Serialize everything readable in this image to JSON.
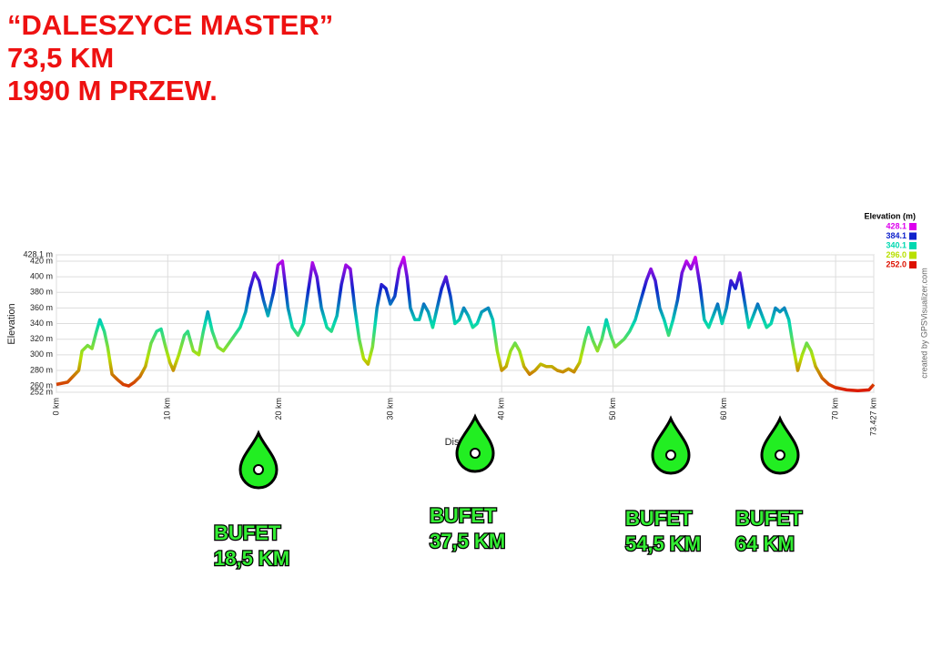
{
  "header": [
    "“DALESZYCE MASTER”",
    "73,5 KM",
    "1990 M PRZEW."
  ],
  "chart_data": {
    "type": "line",
    "y_label": "Elevation",
    "x_label": "Distance",
    "credit": "created by GPSVisualizer.com",
    "xlim": [
      0,
      73.427
    ],
    "ylim": [
      252,
      428.1
    ],
    "xticks": [
      {
        "value": 0,
        "label": "0 km"
      },
      {
        "value": 10,
        "label": "10 km"
      },
      {
        "value": 20,
        "label": "20 km"
      },
      {
        "value": 30,
        "label": "30 km"
      },
      {
        "value": 40,
        "label": "40 km"
      },
      {
        "value": 50,
        "label": "50 km"
      },
      {
        "value": 60,
        "label": "60 km"
      },
      {
        "value": 70,
        "label": "70 km"
      },
      {
        "value": 73.427,
        "label": "73.427 km"
      }
    ],
    "yticks": [
      {
        "value": 252,
        "label": "252 m"
      },
      {
        "value": 260,
        "label": "260 m"
      },
      {
        "value": 280,
        "label": "280 m"
      },
      {
        "value": 300,
        "label": "300 m"
      },
      {
        "value": 320,
        "label": "320 m"
      },
      {
        "value": 340,
        "label": "340 m"
      },
      {
        "value": 360,
        "label": "360 m"
      },
      {
        "value": 380,
        "label": "380 m"
      },
      {
        "value": 400,
        "label": "400 m"
      },
      {
        "value": 420,
        "label": "420 m"
      },
      {
        "value": 428.1,
        "label": "428.1 m"
      }
    ],
    "grid": true,
    "legend": {
      "title": "Elevation (m)",
      "stops": [
        {
          "value": 428.1,
          "label": "428.1",
          "color": "#dd00ee"
        },
        {
          "value": 384.1,
          "label": "384.1",
          "color": "#1022cc"
        },
        {
          "value": 340.1,
          "label": "340.1",
          "color": "#00d8b0"
        },
        {
          "value": 296,
          "label": "296.0",
          "color": "#b8e000"
        },
        {
          "value": 252,
          "label": "252.0",
          "color": "#dd1100"
        }
      ]
    },
    "x": [
      0,
      1,
      2,
      2.3,
      2.8,
      3.2,
      3.6,
      3.9,
      4.3,
      4.6,
      5,
      5.5,
      6,
      6.5,
      7,
      7.5,
      8,
      8.5,
      9,
      9.4,
      9.8,
      10.2,
      10.5,
      11,
      11.5,
      11.8,
      12.3,
      12.8,
      13.2,
      13.6,
      14,
      14.5,
      15,
      15.5,
      16,
      16.5,
      17,
      17.4,
      17.8,
      18.2,
      18.6,
      19,
      19.5,
      19.9,
      20.3,
      20.8,
      21.2,
      21.7,
      22.2,
      22.6,
      23,
      23.4,
      23.8,
      24.3,
      24.7,
      25.2,
      25.6,
      26,
      26.4,
      26.8,
      27.2,
      27.6,
      28,
      28.4,
      28.8,
      29.2,
      29.6,
      30,
      30.4,
      30.8,
      31.2,
      31.5,
      31.8,
      32.2,
      32.6,
      33,
      33.4,
      33.8,
      34.2,
      34.6,
      35,
      35.4,
      35.8,
      36.2,
      36.6,
      37,
      37.4,
      37.8,
      38.2,
      38.8,
      39.2,
      39.6,
      40,
      40.4,
      40.8,
      41.2,
      41.6,
      42,
      42.5,
      43,
      43.5,
      44,
      44.5,
      45,
      45.5,
      46,
      46.5,
      47,
      47.5,
      47.8,
      48.2,
      48.6,
      49,
      49.4,
      49.8,
      50.2,
      50.6,
      51,
      51.5,
      52,
      52.5,
      53,
      53.4,
      53.8,
      54.2,
      54.6,
      55,
      55.4,
      55.8,
      56.2,
      56.6,
      57,
      57.4,
      57.8,
      58.2,
      58.6,
      59,
      59.4,
      59.8,
      60.2,
      60.6,
      61,
      61.4,
      61.8,
      62.2,
      62.6,
      63,
      63.4,
      63.8,
      64.2,
      64.6,
      65,
      65.4,
      65.8,
      66.2,
      66.6,
      67,
      67.4,
      67.8,
      68.2,
      68.8,
      69.4,
      70,
      71,
      72,
      73,
      73.427
    ],
    "values": [
      262,
      265,
      280,
      305,
      312,
      308,
      330,
      345,
      330,
      310,
      275,
      268,
      262,
      260,
      265,
      272,
      285,
      315,
      330,
      333,
      310,
      290,
      280,
      300,
      325,
      330,
      305,
      300,
      330,
      355,
      330,
      310,
      305,
      315,
      325,
      335,
      355,
      385,
      405,
      395,
      370,
      350,
      380,
      415,
      420,
      360,
      335,
      325,
      340,
      380,
      418,
      400,
      360,
      335,
      330,
      350,
      390,
      415,
      410,
      360,
      320,
      295,
      288,
      310,
      360,
      390,
      385,
      365,
      375,
      410,
      425,
      400,
      360,
      345,
      345,
      365,
      355,
      335,
      360,
      385,
      400,
      375,
      340,
      345,
      360,
      350,
      335,
      340,
      355,
      360,
      345,
      305,
      280,
      285,
      305,
      315,
      305,
      285,
      275,
      280,
      288,
      285,
      285,
      280,
      278,
      282,
      278,
      290,
      320,
      335,
      318,
      305,
      320,
      345,
      325,
      310,
      315,
      320,
      330,
      345,
      370,
      395,
      410,
      395,
      360,
      345,
      325,
      345,
      370,
      405,
      420,
      410,
      425,
      390,
      345,
      335,
      350,
      365,
      340,
      360,
      395,
      385,
      405,
      370,
      335,
      350,
      365,
      350,
      335,
      340,
      360,
      355,
      360,
      345,
      310,
      280,
      300,
      315,
      305,
      285,
      270,
      262,
      258,
      255,
      254,
      255,
      262
    ]
  },
  "annotations": [
    {
      "title": "BUFET",
      "distance": "18,5 KM"
    },
    {
      "title": "BUFET",
      "distance": "37,5 KM"
    },
    {
      "title": "BUFET",
      "distance": "54,5 KM"
    },
    {
      "title": "BUFET",
      "distance": "64 KM"
    }
  ]
}
